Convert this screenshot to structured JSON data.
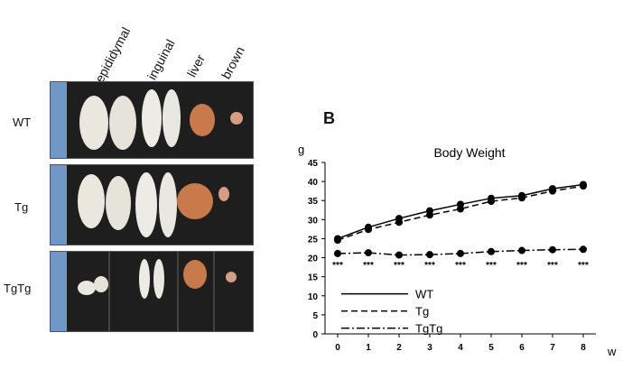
{
  "photo_panel": {
    "column_labels": [
      "epididymal",
      "inguinal",
      "liver",
      "brown"
    ],
    "row_labels": [
      "WT",
      "Tg",
      "TgTg"
    ]
  },
  "panel_letter": "B",
  "colors": {
    "photo_bg": "#1e1e1e",
    "fat_tissue": "#eae7df",
    "liver": "#c97a4b",
    "ruler": "#6f98c8"
  },
  "chart_data": {
    "type": "line",
    "title": "Body Weight",
    "xlabel": "w",
    "ylabel": "g",
    "categories": [
      0,
      1,
      2,
      3,
      4,
      5,
      6,
      7,
      8
    ],
    "ylim": [
      0,
      45
    ],
    "yticks": [
      0,
      5,
      10,
      15,
      20,
      25,
      30,
      35,
      40,
      45
    ],
    "grid": false,
    "legend_position": "bottom-left",
    "series": [
      {
        "name": "WT",
        "line_style": "solid",
        "values": [
          25,
          28,
          30.3,
          32.3,
          34,
          35.6,
          36.3,
          38.1,
          39.2
        ]
      },
      {
        "name": "Tg",
        "line_style": "dashed",
        "values": [
          24.6,
          27.4,
          29.3,
          31.2,
          32.8,
          34.8,
          35.7,
          37.5,
          38.8
        ]
      },
      {
        "name": "TgTg",
        "line_style": "dash-dot",
        "values": [
          21.1,
          21.3,
          20.7,
          20.8,
          21.1,
          21.6,
          21.9,
          22.1,
          22.2
        ]
      }
    ],
    "annotations": [
      "***",
      "***",
      "***",
      "***",
      "***",
      "***",
      "***",
      "***",
      "***"
    ]
  }
}
